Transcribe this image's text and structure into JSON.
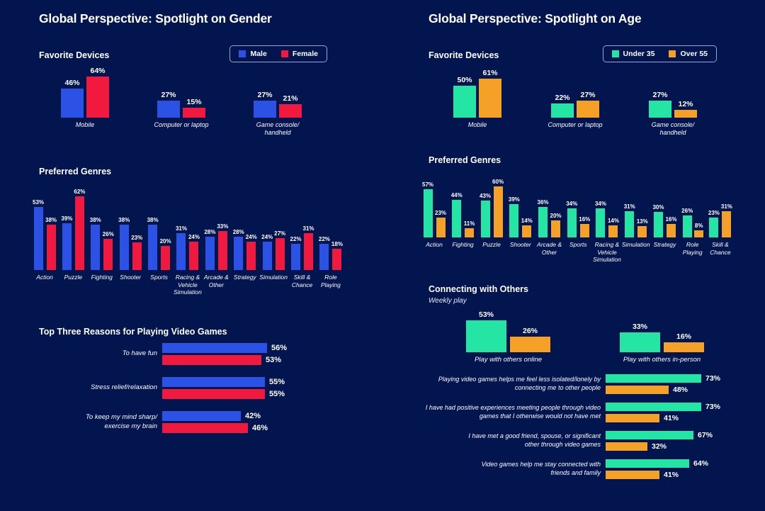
{
  "colors": {
    "background": "#02154E",
    "male": "#2B51E5",
    "female": "#F2193F",
    "under35": "#25E5A4",
    "over55": "#F5A127",
    "text": "#FFFFFF"
  },
  "panels": [
    {
      "id": "gender",
      "title": "Global Perspective: Spotlight on Gender",
      "legend": [
        {
          "label": "Male",
          "color": "#2B51E5"
        },
        {
          "label": "Female",
          "color": "#F2193F"
        }
      ]
    },
    {
      "id": "age",
      "title": "Global Perspective: Spotlight on Age",
      "legend": [
        {
          "label": "Under 35",
          "color": "#25E5A4"
        },
        {
          "label": "Over 55",
          "color": "#F5A127"
        }
      ]
    }
  ],
  "chart_data": [
    {
      "id": "gender-devices",
      "type": "bar",
      "orientation": "vertical",
      "title": "Favorite Devices",
      "unit": "%",
      "legend_position": "top-right",
      "ylim": [
        0,
        70
      ],
      "categories": [
        "Mobile",
        "Computer or laptop",
        "Game console/\nhandheld"
      ],
      "series": [
        {
          "name": "Male",
          "color": "#2B51E5",
          "values": [
            46,
            27,
            27
          ]
        },
        {
          "name": "Female",
          "color": "#F2193F",
          "values": [
            64,
            15,
            21
          ]
        }
      ]
    },
    {
      "id": "gender-genres",
      "type": "bar",
      "orientation": "vertical",
      "title": "Preferred Genres",
      "unit": "%",
      "ylim": [
        0,
        70
      ],
      "categories": [
        "Action",
        "Puzzle",
        "Fighting",
        "Shooter",
        "Sports",
        "Racing &\nVehicle\nSimulation",
        "Arcade &\nOther",
        "Strategy",
        "Simulation",
        "Skill &\nChance",
        "Role\nPlaying"
      ],
      "series": [
        {
          "name": "Male",
          "color": "#2B51E5",
          "values": [
            53,
            39,
            38,
            38,
            38,
            31,
            28,
            28,
            24,
            22,
            22
          ]
        },
        {
          "name": "Female",
          "color": "#F2193F",
          "values": [
            38,
            62,
            26,
            23,
            20,
            24,
            33,
            24,
            27,
            31,
            18
          ]
        }
      ]
    },
    {
      "id": "gender-reasons",
      "type": "bar",
      "orientation": "horizontal",
      "title": "Top Three Reasons for Playing Video Games",
      "unit": "%",
      "xlim": [
        0,
        60
      ],
      "categories": [
        "To have fun",
        "Stress relief/relaxation",
        "To keep my mind sharp/\nexercise my brain"
      ],
      "series": [
        {
          "name": "Male",
          "color": "#2B51E5",
          "values": [
            56,
            55,
            42
          ]
        },
        {
          "name": "Female",
          "color": "#F2193F",
          "values": [
            53,
            55,
            46
          ]
        }
      ]
    },
    {
      "id": "age-devices",
      "type": "bar",
      "orientation": "vertical",
      "title": "Favorite Devices",
      "unit": "%",
      "legend_position": "top-right",
      "ylim": [
        0,
        70
      ],
      "categories": [
        "Mobile",
        "Computer or laptop",
        "Game console/\nhandheld"
      ],
      "series": [
        {
          "name": "Under 35",
          "color": "#25E5A4",
          "values": [
            50,
            22,
            27
          ]
        },
        {
          "name": "Over 55",
          "color": "#F5A127",
          "values": [
            61,
            27,
            12
          ]
        }
      ]
    },
    {
      "id": "age-genres",
      "type": "bar",
      "orientation": "vertical",
      "title": "Preferred Genres",
      "unit": "%",
      "ylim": [
        0,
        70
      ],
      "categories": [
        "Action",
        "Fighting",
        "Puzzle",
        "Shooter",
        "Arcade &\nOther",
        "Sports",
        "Racing &\nVehicle\nSimulation",
        "Simulation",
        "Strategy",
        "Role\nPlaying",
        "Skill &\nChance"
      ],
      "series": [
        {
          "name": "Under 35",
          "color": "#25E5A4",
          "values": [
            57,
            44,
            43,
            39,
            36,
            34,
            34,
            31,
            30,
            26,
            23
          ]
        },
        {
          "name": "Over 55",
          "color": "#F5A127",
          "values": [
            23,
            11,
            60,
            14,
            20,
            16,
            14,
            13,
            16,
            8,
            31
          ]
        }
      ]
    },
    {
      "id": "age-connecting",
      "type": "bar",
      "orientation": "vertical",
      "title": "Connecting with Others",
      "subtitle": "Weekly play",
      "unit": "%",
      "ylim": [
        0,
        60
      ],
      "categories": [
        "Play with others online",
        "Play with others in-person"
      ],
      "series": [
        {
          "name": "Under 35",
          "color": "#25E5A4",
          "values": [
            53,
            33
          ]
        },
        {
          "name": "Over 55",
          "color": "#F5A127",
          "values": [
            26,
            16
          ]
        }
      ]
    },
    {
      "id": "age-statements",
      "type": "bar",
      "orientation": "horizontal",
      "unit": "%",
      "xlim": [
        0,
        80
      ],
      "categories": [
        "Playing video games helps me feel less isolated/lonely by\nconnecting me to other people",
        "I have had positive experiences meeting people through video\ngames that I otherwise would not have met",
        "I have met a good friend, spouse, or significant\nother through video games",
        "Video games help me stay connected with\nfriends and family"
      ],
      "series": [
        {
          "name": "Under 35",
          "color": "#25E5A4",
          "values": [
            73,
            73,
            67,
            64
          ]
        },
        {
          "name": "Over 55",
          "color": "#F5A127",
          "values": [
            48,
            41,
            32,
            41
          ]
        }
      ]
    }
  ]
}
